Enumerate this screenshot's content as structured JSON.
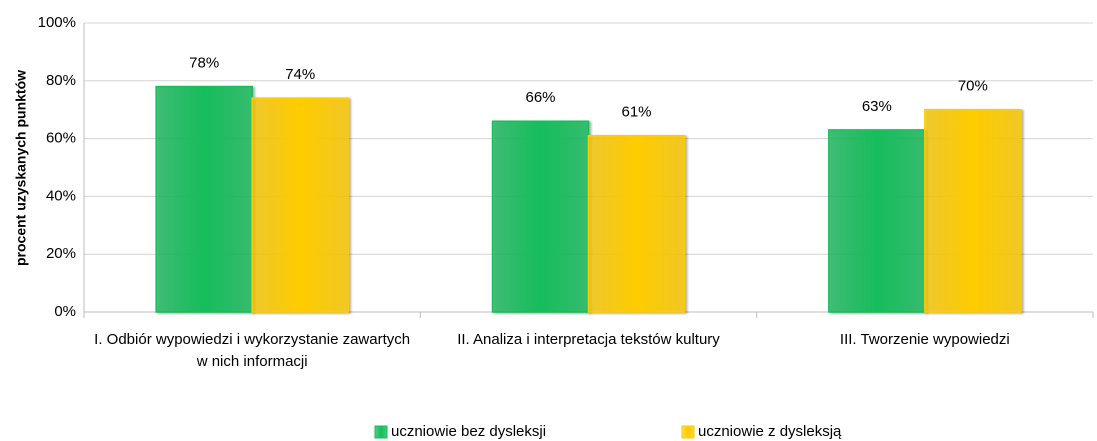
{
  "chart_data": {
    "type": "bar",
    "ylabel": "procent uzyskanych punktów",
    "categories": [
      "I. Odbiór wypowiedzi i wykorzystanie zawartych w nich informacji",
      "II. Analiza i interpretacja tekstów kultury",
      "III. Tworzenie wypowiedzi"
    ],
    "series": [
      {
        "name": "uczniowie bez dysleksji",
        "color": "#16bd5c",
        "values": [
          78,
          66,
          63
        ],
        "value_labels": [
          "78%",
          "66%",
          "63%"
        ]
      },
      {
        "name": "uczniowie z dysleksją",
        "color": "#ffcc00",
        "values": [
          74,
          61,
          70
        ],
        "value_labels": [
          "74%",
          "61%",
          "70%"
        ]
      }
    ],
    "ylim": [
      0,
      100
    ],
    "yticks": [
      {
        "value": 0,
        "label": "0%"
      },
      {
        "value": 20,
        "label": "20%"
      },
      {
        "value": 40,
        "label": "40%"
      },
      {
        "value": 60,
        "label": "60%"
      },
      {
        "value": 80,
        "label": "80%"
      },
      {
        "value": 100,
        "label": "100%"
      }
    ],
    "grid": true,
    "legend": "bottom"
  }
}
